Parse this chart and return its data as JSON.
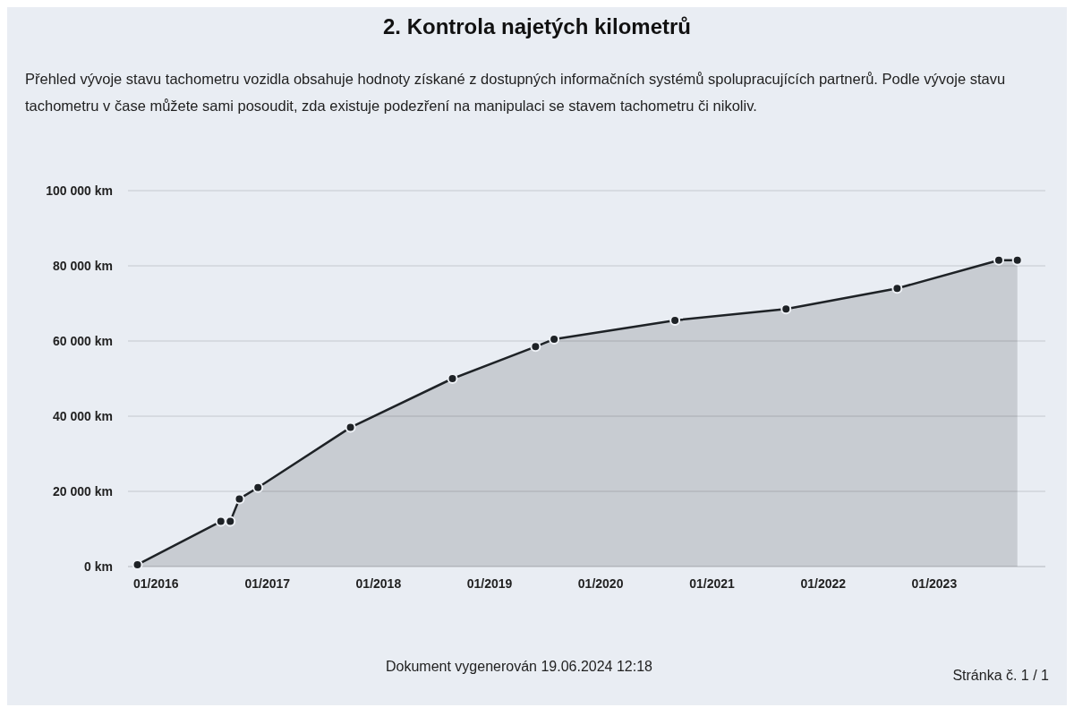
{
  "chart_data": {
    "type": "area",
    "title": "2. Kontrola najetých kilometrů",
    "subtitle": "Přehled vývoje stavu tachometru vozidla obsahuje hodnoty získané z dostupných informačních systémů spolupracujících partnerů. Podle vývoje stavu tachometru v čase můžete sami posoudit, zda existuje podezření na manipulaci se stavem tachometru či nikoliv.",
    "x": [
      "2015-11",
      "2016-08",
      "2016-09",
      "2016-10",
      "2016-12",
      "2017-10",
      "2018-09",
      "2019-06",
      "2019-08",
      "2020-09",
      "2021-09",
      "2022-09",
      "2023-08",
      "2023-10"
    ],
    "series": [
      {
        "color": "#1e2226",
        "values": [
          500,
          12000,
          12000,
          18000,
          21000,
          37000,
          50000,
          58500,
          60500,
          65500,
          68500,
          74000,
          81500,
          81500
        ]
      }
    ],
    "xlim": [
      "2015-10",
      "2024-01"
    ],
    "xticks": [
      {
        "value": "2016-01",
        "label": "01/2016"
      },
      {
        "value": "2017-01",
        "label": "01/2017"
      },
      {
        "value": "2018-01",
        "label": "01/2018"
      },
      {
        "value": "2019-01",
        "label": "01/2019"
      },
      {
        "value": "2020-01",
        "label": "01/2020"
      },
      {
        "value": "2021-01",
        "label": "01/2021"
      },
      {
        "value": "2022-01",
        "label": "01/2022"
      },
      {
        "value": "2023-01",
        "label": "01/2023"
      }
    ],
    "ylim": [
      0,
      100000
    ],
    "yticks": [
      {
        "value": 0,
        "label": "0 km"
      },
      {
        "value": 20000,
        "label": "20 000 km"
      },
      {
        "value": 40000,
        "label": "40 000 km"
      },
      {
        "value": 60000,
        "label": "60 000 km"
      },
      {
        "value": 80000,
        "label": "80 000 km"
      },
      {
        "value": 100000,
        "label": "100 000 km"
      }
    ],
    "grid": "y",
    "marker": "circle",
    "annotations": [
      "Dokument vygenerován 19.06.2024 12:18",
      "Stránka č. 1 / 1"
    ]
  }
}
